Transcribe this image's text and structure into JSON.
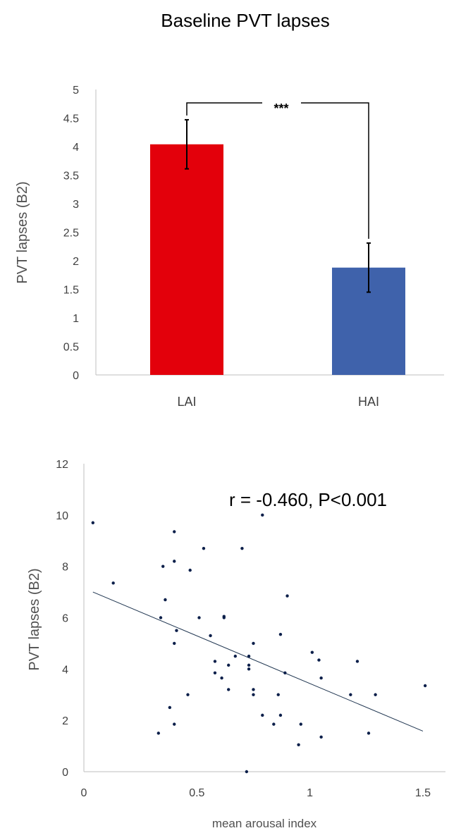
{
  "chart_data": [
    {
      "type": "bar",
      "title": "Baseline PVT lapses",
      "ylabel": "PVT lapses (B2)",
      "xlabel": "",
      "categories": [
        "LAI",
        "HAI"
      ],
      "values": [
        4.04,
        1.88
      ],
      "error": [
        0.43,
        0.43
      ],
      "colors": [
        "#e3000b",
        "#3f62ab"
      ],
      "ylim": [
        0,
        5
      ],
      "yticks": [
        0,
        0.5,
        1,
        1.5,
        2,
        2.5,
        3,
        3.5,
        4,
        4.5,
        5
      ],
      "ytick_labels": [
        "0",
        "0.5",
        "1",
        "1.5",
        "2",
        "2.5",
        "3",
        "3.5",
        "4",
        "4.5",
        "5"
      ],
      "significance": "***",
      "grid": false
    },
    {
      "type": "scatter",
      "title": "",
      "ylabel": "PVT lapses (B2)",
      "xlabel": "mean arousal index",
      "annotation": "r = -0.460, P<0.001",
      "xlim": [
        0,
        1.6
      ],
      "ylim": [
        0,
        12
      ],
      "xticks": [
        0,
        0.5,
        1,
        1.5
      ],
      "xtick_labels": [
        "0",
        "0.5",
        "1",
        "1.5"
      ],
      "yticks": [
        0,
        2,
        4,
        6,
        8,
        10,
        12
      ],
      "ytick_labels": [
        "0",
        "2",
        "4",
        "6",
        "8",
        "10",
        "12"
      ],
      "point_color": "#0b1f4a",
      "trendline": {
        "x": [
          0.04,
          1.5
        ],
        "y": [
          7.0,
          1.58
        ]
      },
      "grid": false,
      "points": [
        [
          0.04,
          9.7
        ],
        [
          0.13,
          7.35
        ],
        [
          0.33,
          1.5
        ],
        [
          0.34,
          6.0
        ],
        [
          0.35,
          8.0
        ],
        [
          0.36,
          6.7
        ],
        [
          0.38,
          2.5
        ],
        [
          0.4,
          5.0
        ],
        [
          0.4,
          1.85
        ],
        [
          0.4,
          8.2
        ],
        [
          0.4,
          9.35
        ],
        [
          0.41,
          5.5
        ],
        [
          0.46,
          3.0
        ],
        [
          0.47,
          7.85
        ],
        [
          0.51,
          6.0
        ],
        [
          0.53,
          8.7
        ],
        [
          0.56,
          5.3
        ],
        [
          0.58,
          4.3
        ],
        [
          0.58,
          3.85
        ],
        [
          0.61,
          3.65
        ],
        [
          0.62,
          6.0
        ],
        [
          0.62,
          6.05
        ],
        [
          0.64,
          4.15
        ],
        [
          0.64,
          3.2
        ],
        [
          0.67,
          4.5
        ],
        [
          0.7,
          8.7
        ],
        [
          0.72,
          0.0
        ],
        [
          0.73,
          4.5
        ],
        [
          0.73,
          4.15
        ],
        [
          0.73,
          4.0
        ],
        [
          0.75,
          5.0
        ],
        [
          0.75,
          3.0
        ],
        [
          0.75,
          3.2
        ],
        [
          0.79,
          2.2
        ],
        [
          0.79,
          10.0
        ],
        [
          0.84,
          1.85
        ],
        [
          0.86,
          3.0
        ],
        [
          0.87,
          2.2
        ],
        [
          0.87,
          5.35
        ],
        [
          0.89,
          3.85
        ],
        [
          0.9,
          6.85
        ],
        [
          0.95,
          1.05
        ],
        [
          0.96,
          1.85
        ],
        [
          1.01,
          4.65
        ],
        [
          1.04,
          4.35
        ],
        [
          1.05,
          3.65
        ],
        [
          1.05,
          1.35
        ],
        [
          1.18,
          3.0
        ],
        [
          1.21,
          4.3
        ],
        [
          1.26,
          1.5
        ],
        [
          1.29,
          3.0
        ],
        [
          1.51,
          3.35
        ]
      ]
    }
  ]
}
